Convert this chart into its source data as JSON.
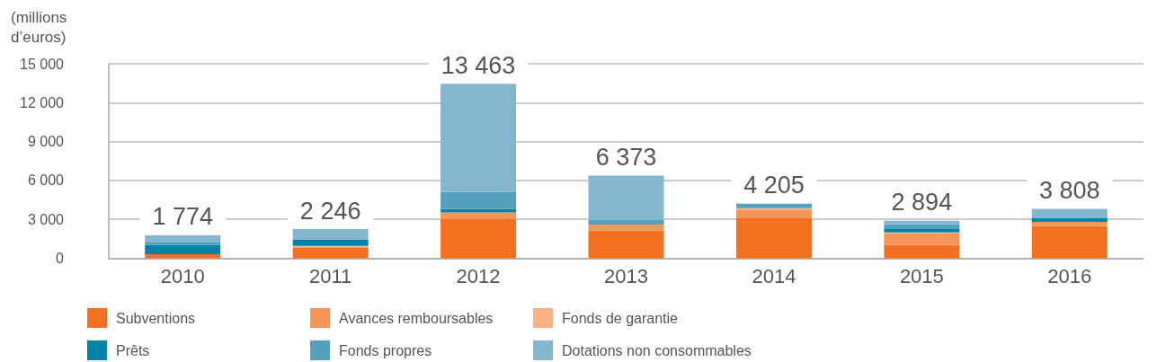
{
  "chart_data": {
    "type": "bar",
    "stacked": true,
    "ylabel": "(millions d’euros)",
    "categories": [
      "2010",
      "2011",
      "2012",
      "2013",
      "2014",
      "2015",
      "2016"
    ],
    "series": [
      {
        "name": "Subventions",
        "color": "#f37021",
        "values": [
          310,
          806,
          3010,
          2130,
          3085,
          1044,
          2478
        ]
      },
      {
        "name": "Avances remboursables",
        "color": "#f6955a",
        "values": [
          null,
          80,
          520,
          460,
          630,
          880,
          330
        ]
      },
      {
        "name": "Fonds de garantie",
        "color": "#f9b283",
        "values": [
          null,
          70,
          null,
          null,
          140,
          70,
          null
        ]
      },
      {
        "name": "Prêts",
        "color": "#0083a4",
        "values": [
          734,
          460,
          260,
          null,
          null,
          260,
          270
        ]
      },
      {
        "name": "Fonds propres",
        "color": "#56a0bf",
        "values": [
          220,
          null,
          1340,
          360,
          350,
          360,
          null
        ]
      },
      {
        "name": "Dotations non consommables",
        "color": "#85b6cf",
        "values": [
          510,
          830,
          8333,
          3423,
          null,
          280,
          730
        ]
      }
    ],
    "ylim": [
      0,
      15000
    ],
    "yticks": [
      0,
      {
        "value": 3000,
        "label": "3 000"
      },
      {
        "value": 6000,
        "label": "6 000"
      },
      {
        "value": 9000,
        "label": "9 000"
      },
      {
        "value": 12000,
        "label": "12 000"
      },
      {
        "value": 15000,
        "label": "15 000"
      }
    ],
    "grid": "y",
    "legend": "bottom",
    "totals": [
      "1 774",
      "2 246",
      "13 463",
      "6 373",
      "4 205",
      "2 894",
      "3 808"
    ]
  }
}
